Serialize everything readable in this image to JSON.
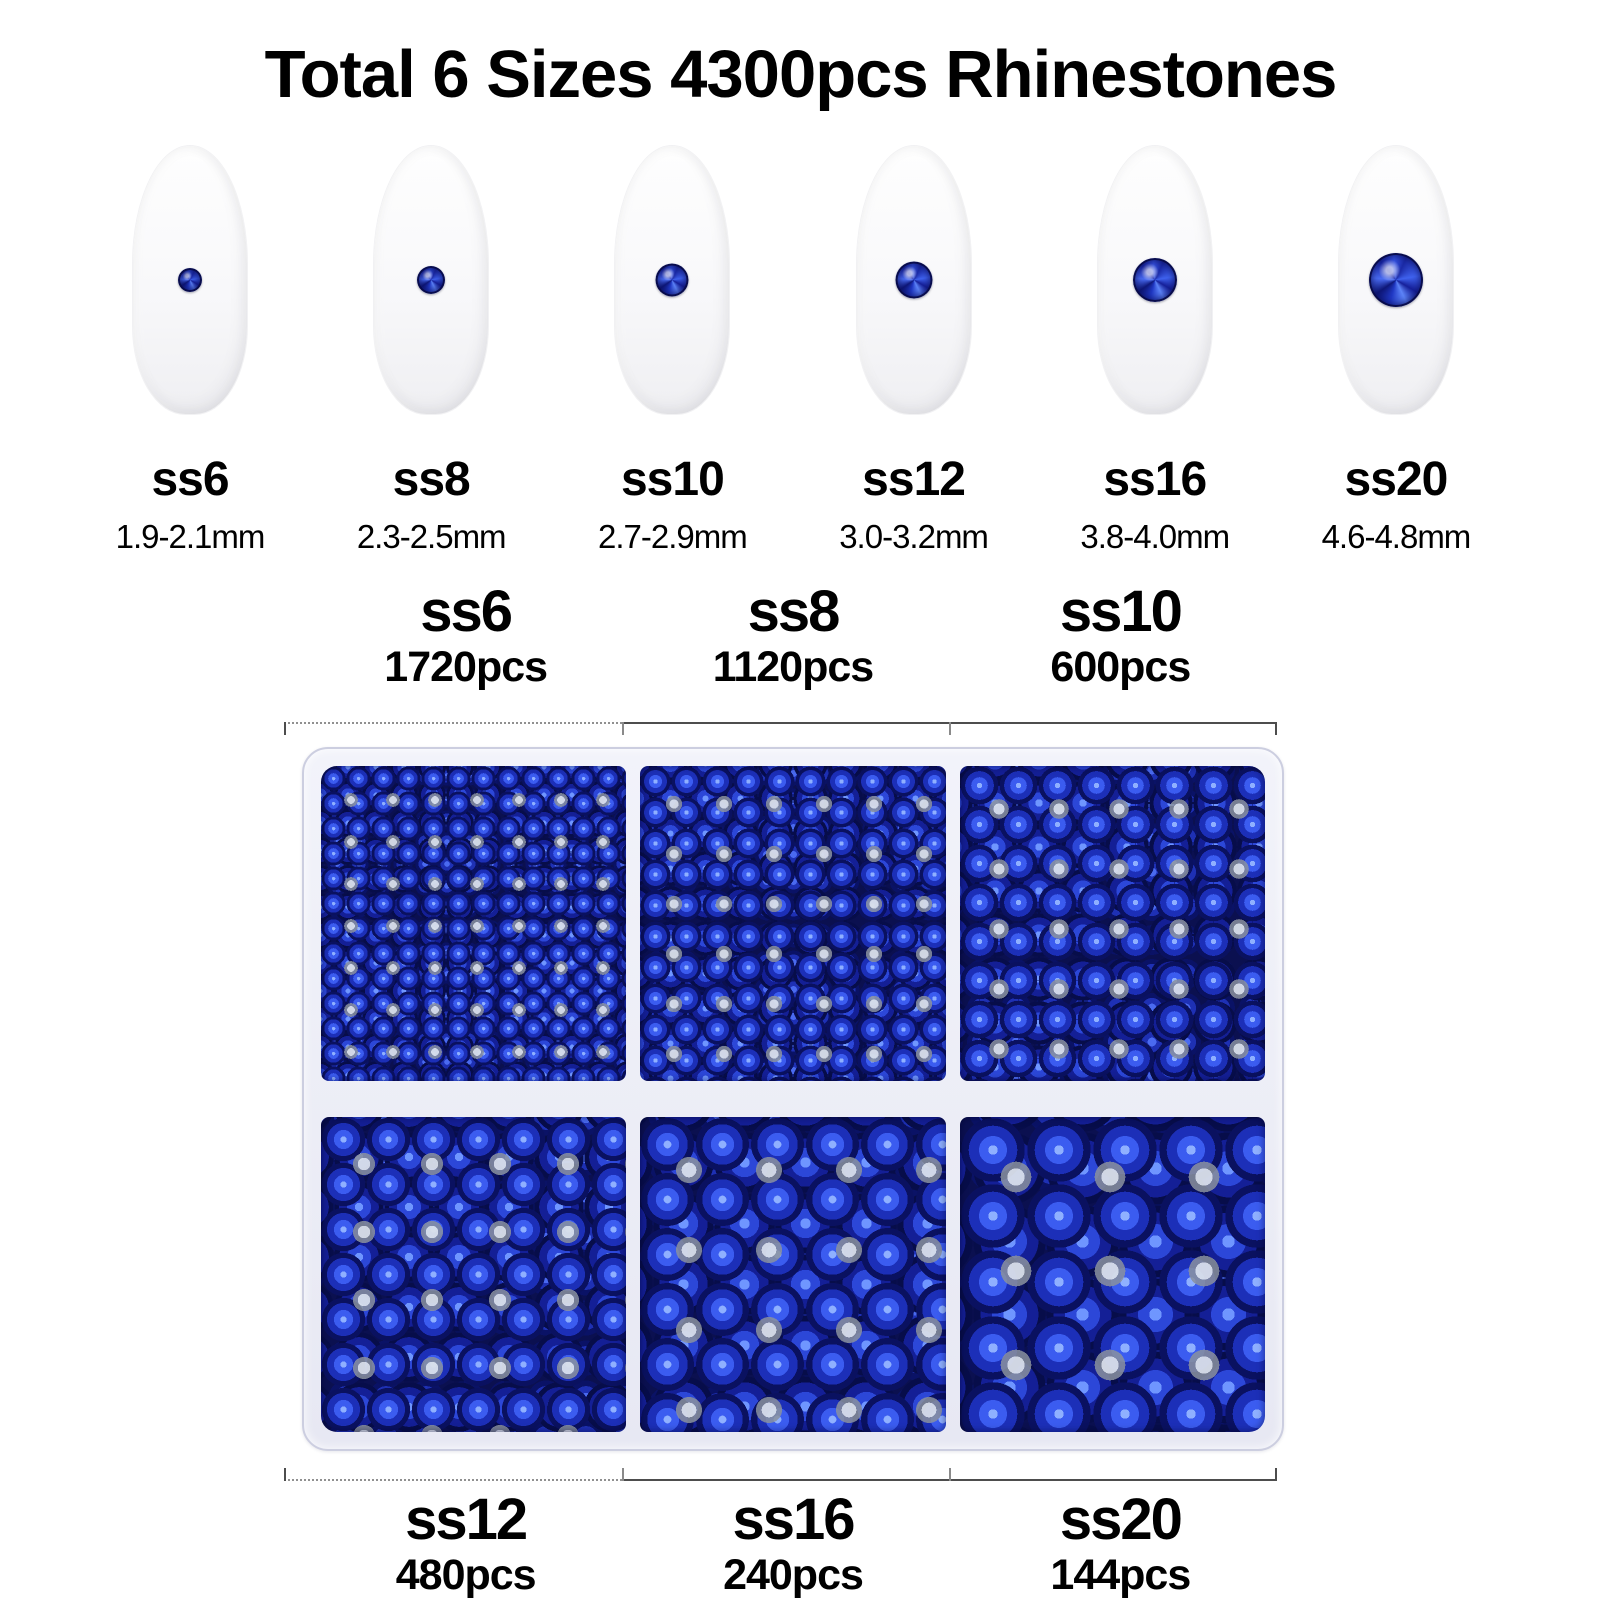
{
  "title": "Total 6 Sizes 4300pcs Rhinestones",
  "nails": [
    {
      "size": "ss6",
      "range": "1.9-2.1mm"
    },
    {
      "size": "ss8",
      "range": "2.3-2.5mm"
    },
    {
      "size": "ss10",
      "range": "2.7-2.9mm"
    },
    {
      "size": "ss12",
      "range": "3.0-3.2mm"
    },
    {
      "size": "ss16",
      "range": "3.8-4.0mm"
    },
    {
      "size": "ss20",
      "range": "4.6-4.8mm"
    }
  ],
  "box": {
    "top": [
      {
        "size": "ss6",
        "count": "1720pcs"
      },
      {
        "size": "ss8",
        "count": "1120pcs"
      },
      {
        "size": "ss10",
        "count": "600pcs"
      }
    ],
    "bottom": [
      {
        "size": "ss12",
        "count": "480pcs"
      },
      {
        "size": "ss16",
        "count": "240pcs"
      },
      {
        "size": "ss20",
        "count": "144pcs"
      }
    ]
  },
  "colors": {
    "gem_blue": "#2b46d6",
    "gem_highlight": "#6f96ff",
    "gem_dark": "#0a1158",
    "flatback_silver": "#b9bec8",
    "box_rim": "#e9eaf4",
    "bracket_line": "#4d4d4d"
  }
}
